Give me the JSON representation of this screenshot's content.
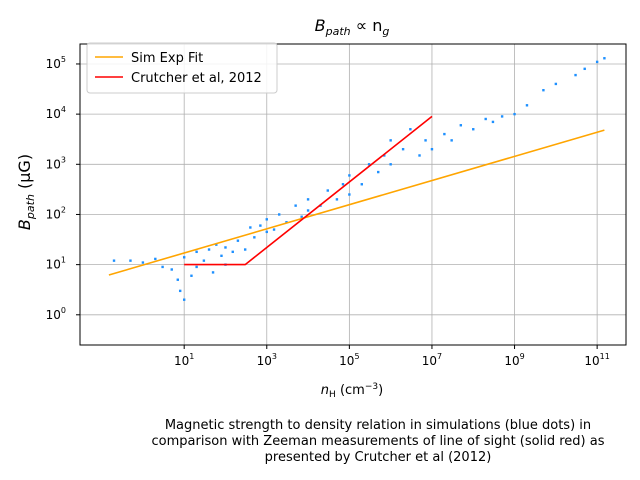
{
  "chart_data": {
    "type": "scatter",
    "title_main": "B",
    "title_sub": "path",
    "title_rest": " ∝ n",
    "title_sub2": "g",
    "xlabel_main": "n",
    "xlabel_sub": "H",
    "xlabel_unit": " (cm",
    "xlabel_exp": "−3",
    "xlabel_close": ")",
    "ylabel_main": "B",
    "ylabel_sub": "path",
    "ylabel_unit": " (μG)",
    "x_scale": "log",
    "y_scale": "log",
    "xlim": [
      0.03,
      500000000000.0
    ],
    "ylim": [
      0.25,
      250000.0
    ],
    "x_ticks": [
      {
        "value": 10,
        "base": "10",
        "exp": "1"
      },
      {
        "value": 1000,
        "base": "10",
        "exp": "3"
      },
      {
        "value": 100000,
        "base": "10",
        "exp": "5"
      },
      {
        "value": 10000000,
        "base": "10",
        "exp": "7"
      },
      {
        "value": 1000000000,
        "base": "10",
        "exp": "9"
      },
      {
        "value": 100000000000,
        "base": "10",
        "exp": "11"
      }
    ],
    "y_ticks": [
      {
        "value": 1,
        "base": "10",
        "exp": "0"
      },
      {
        "value": 10,
        "base": "10",
        "exp": "1"
      },
      {
        "value": 100,
        "base": "10",
        "exp": "2"
      },
      {
        "value": 1000,
        "base": "10",
        "exp": "3"
      },
      {
        "value": 10000,
        "base": "10",
        "exp": "4"
      },
      {
        "value": 100000,
        "base": "10",
        "exp": "5"
      }
    ],
    "grid": true,
    "legend_position": "top-left",
    "series": [
      {
        "name": "Sim Exp Fit",
        "kind": "line",
        "color": "#ffa500",
        "x": [
          0.15,
          150000000000
        ],
        "y": [
          6.2,
          4800
        ]
      },
      {
        "name": "Crutcher et al, 2012",
        "kind": "line",
        "color": "#ff0000",
        "x": [
          10,
          300,
          10000000
        ],
        "y": [
          10,
          10,
          9000
        ]
      },
      {
        "name": "",
        "kind": "scatter",
        "color": "#1e90ff",
        "points": [
          [
            0.2,
            12
          ],
          [
            0.5,
            12
          ],
          [
            1,
            11
          ],
          [
            2,
            13
          ],
          [
            3,
            9
          ],
          [
            5,
            8
          ],
          [
            7,
            5
          ],
          [
            8,
            3
          ],
          [
            10,
            2
          ],
          [
            10,
            14
          ],
          [
            15,
            6
          ],
          [
            20,
            9
          ],
          [
            20,
            18
          ],
          [
            30,
            12
          ],
          [
            40,
            20
          ],
          [
            50,
            7
          ],
          [
            60,
            25
          ],
          [
            80,
            15
          ],
          [
            100,
            10
          ],
          [
            100,
            22
          ],
          [
            150,
            18
          ],
          [
            200,
            30
          ],
          [
            300,
            20
          ],
          [
            400,
            55
          ],
          [
            500,
            35
          ],
          [
            700,
            60
          ],
          [
            1000,
            45
          ],
          [
            1000,
            80
          ],
          [
            1500,
            50
          ],
          [
            2000,
            100
          ],
          [
            3000,
            70
          ],
          [
            5000,
            150
          ],
          [
            7000,
            90
          ],
          [
            10000,
            120
          ],
          [
            10000,
            200
          ],
          [
            20000,
            150
          ],
          [
            30000,
            300
          ],
          [
            50000,
            200
          ],
          [
            70000,
            400
          ],
          [
            100000,
            250
          ],
          [
            100000,
            600
          ],
          [
            200000,
            400
          ],
          [
            300000,
            1000
          ],
          [
            500000,
            700
          ],
          [
            700000,
            1500
          ],
          [
            1000000,
            1000
          ],
          [
            1000000,
            3000
          ],
          [
            2000000,
            2000
          ],
          [
            3000000,
            5000
          ],
          [
            5000000,
            1500
          ],
          [
            7000000,
            3000
          ],
          [
            10000000,
            2000
          ],
          [
            20000000,
            4000
          ],
          [
            30000000,
            3000
          ],
          [
            50000000,
            6000
          ],
          [
            100000000,
            5000
          ],
          [
            200000000,
            8000
          ],
          [
            300000000,
            7000
          ],
          [
            500000000,
            9000
          ],
          [
            1000000000,
            10000
          ],
          [
            2000000000,
            15000
          ],
          [
            5000000000,
            30000
          ],
          [
            10000000000,
            40000
          ],
          [
            30000000000,
            60000
          ],
          [
            50000000000,
            80000
          ],
          [
            100000000000,
            110000
          ],
          [
            150000000000,
            130000
          ]
        ]
      }
    ]
  },
  "caption": {
    "line1": "Magnetic strength to density relation in simulations (blue dots) in",
    "line2": "comparison with Zeeman measurements of line of sight (solid red) as",
    "line3": "presented by Crutcher et al (2012)"
  }
}
